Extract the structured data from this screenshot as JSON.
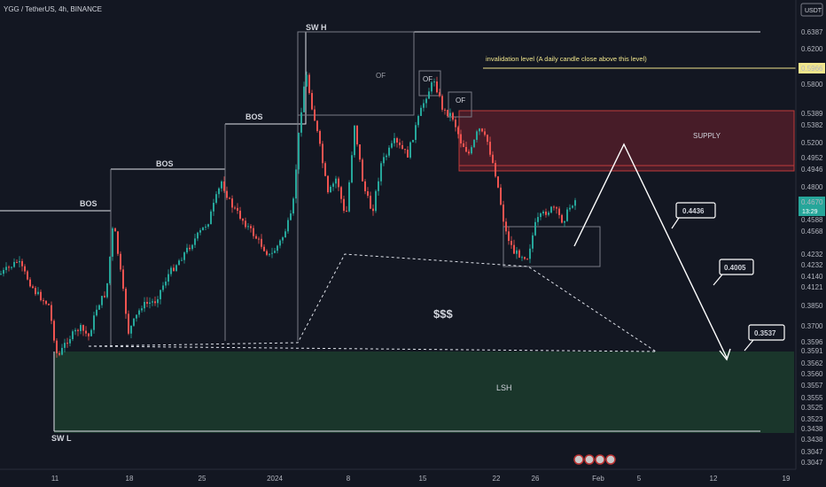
{
  "header": {
    "symbol": "YGG / TetherUS, 4h, BINANCE"
  },
  "axis": {
    "currency": "USDT",
    "countdown": "13:29"
  },
  "colors": {
    "bg": "#131722",
    "up": "#26a69a",
    "down": "#ef5350",
    "highlight_badge": "#f0e68c",
    "current_badge": "#26a69a"
  },
  "chart_data": {
    "type": "candlestick",
    "y_ticks": [
      {
        "label": "0.6387"
      },
      {
        "label": "0.6200"
      },
      {
        "label": "0.5966",
        "style": "highlight"
      },
      {
        "label": "0.5800"
      },
      {
        "label": "0.5389"
      },
      {
        "label": "0.5382"
      },
      {
        "label": "0.5200"
      },
      {
        "label": "0.4952"
      },
      {
        "label": "0.4946"
      },
      {
        "label": "0.4800"
      },
      {
        "label": "0.4670",
        "style": "current"
      },
      {
        "label": "0.4588"
      },
      {
        "label": "0.4568"
      },
      {
        "label": "0.4232"
      },
      {
        "label": "0.4232"
      },
      {
        "label": "0.4140"
      },
      {
        "label": "0.4121"
      },
      {
        "label": "0.3850"
      },
      {
        "label": "0.3700"
      },
      {
        "label": "0.3596"
      },
      {
        "label": "0.3591"
      },
      {
        "label": "0.3562"
      },
      {
        "label": "0.3560"
      },
      {
        "label": "0.3557"
      },
      {
        "label": "0.3555"
      },
      {
        "label": "0.3525"
      },
      {
        "label": "0.3523"
      },
      {
        "label": "0.3438"
      },
      {
        "label": "0.3438"
      },
      {
        "label": "0.3047"
      },
      {
        "label": "0.3047"
      }
    ],
    "x_ticks": [
      "11",
      "18",
      "25",
      "2024",
      "8",
      "15",
      "22",
      "26",
      "Feb",
      "5",
      "12",
      "19"
    ],
    "annotations": {
      "bos": [
        "BOS",
        "BOS",
        "BOS"
      ],
      "sw_high": "SW H",
      "sw_low": "SW L",
      "of": [
        "OF",
        "OF",
        "OF"
      ],
      "invalidation": "invalidation level (A daily candle close above this level)",
      "supply": "SUPPLY",
      "liquidity": "$$$",
      "lsh": "LSH",
      "targets": [
        "0.4436",
        "0.4005",
        "0.3537"
      ]
    }
  }
}
